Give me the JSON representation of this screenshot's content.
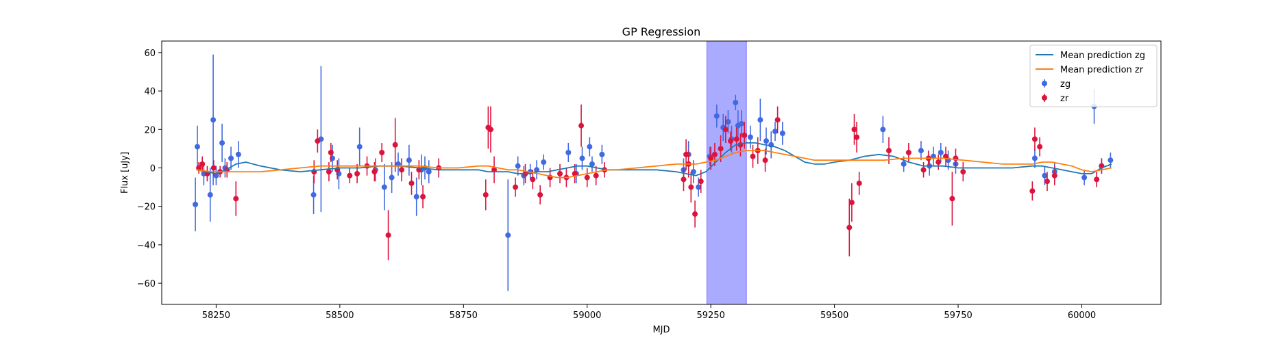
{
  "chart_data": {
    "type": "scatter",
    "title": "GP Regression",
    "xlabel": "MJD",
    "ylabel": "Flux [uJy]",
    "xlim": [
      58140,
      60160
    ],
    "ylim": [
      -71,
      66
    ],
    "xticks": [
      58250,
      58500,
      58750,
      59000,
      59250,
      59500,
      59750,
      60000
    ],
    "yticks": [
      -60,
      -40,
      -20,
      0,
      20,
      40,
      60
    ],
    "grid": false,
    "legend_position": "top-right",
    "highlight_span": {
      "x": [
        59242,
        59322
      ],
      "color": "#aaaaff"
    },
    "series": [
      {
        "name": "Mean prediction zg",
        "kind": "line",
        "color": "#1f77b4",
        "x": [
          58210,
          58230,
          58250,
          58270,
          58290,
          58310,
          58340,
          58380,
          58420,
          58460,
          58500,
          58540,
          58580,
          58620,
          58660,
          58700,
          58740,
          58780,
          58800,
          58820,
          58840,
          58860,
          58880,
          58900,
          58920,
          58940,
          58960,
          58980,
          59000,
          59020,
          59040,
          59060,
          59100,
          59140,
          59180,
          59200,
          59220,
          59240,
          59260,
          59280,
          59300,
          59320,
          59340,
          59360,
          59380,
          59400,
          59420,
          59440,
          59460,
          59480,
          59500,
          59530,
          59560,
          59590,
          59620,
          59650,
          59680,
          59700,
          59720,
          59750,
          59780,
          59820,
          59860,
          59900,
          59920,
          59940,
          59960,
          59980,
          60000,
          60020,
          60040,
          60060
        ],
        "y": [
          -1,
          -2,
          -3,
          -1,
          2,
          3,
          1,
          -1,
          -2,
          -1,
          0,
          0,
          1,
          1,
          0,
          -1,
          -1,
          -1,
          -2,
          -2,
          -2,
          -3,
          -3,
          -2,
          -2,
          -1,
          0,
          1,
          1,
          0,
          -1,
          -1,
          -1,
          -1,
          -2,
          -3,
          -4,
          -2,
          3,
          8,
          12,
          13,
          13,
          12,
          11,
          9,
          6,
          3,
          2,
          2,
          3,
          4,
          6,
          7,
          6,
          3,
          1,
          1,
          1,
          0,
          0,
          0,
          0,
          1,
          1,
          0,
          -1,
          -2,
          -3,
          -3,
          0,
          2
        ]
      },
      {
        "name": "Mean prediction zr",
        "kind": "line",
        "color": "#ff7f0e",
        "x": [
          58210,
          58240,
          58270,
          58300,
          58340,
          58380,
          58420,
          58460,
          58500,
          58540,
          58580,
          58620,
          58660,
          58700,
          58740,
          58780,
          58800,
          58820,
          58840,
          58860,
          58880,
          58900,
          58920,
          58940,
          58960,
          58980,
          59000,
          59020,
          59040,
          59060,
          59100,
          59140,
          59180,
          59200,
          59220,
          59240,
          59260,
          59280,
          59300,
          59320,
          59340,
          59360,
          59380,
          59400,
          59420,
          59440,
          59460,
          59480,
          59500,
          59530,
          59560,
          59600,
          59640,
          59680,
          59720,
          59760,
          59800,
          59840,
          59880,
          59900,
          59920,
          59940,
          59960,
          59980,
          60000,
          60020,
          60040,
          60060
        ],
        "y": [
          -1,
          -2,
          -2,
          -2,
          -2,
          -1,
          0,
          1,
          1,
          1,
          1,
          1,
          1,
          0,
          0,
          1,
          1,
          0,
          -1,
          -1,
          -2,
          -3,
          -4,
          -5,
          -5,
          -4,
          -3,
          -2,
          -1,
          -1,
          0,
          1,
          2,
          2,
          2,
          3,
          4,
          6,
          8,
          9,
          9,
          9,
          8,
          7,
          6,
          5,
          4,
          4,
          4,
          4,
          4,
          4,
          5,
          5,
          5,
          4,
          3,
          2,
          2,
          2,
          3,
          3,
          2,
          1,
          -1,
          -2,
          -1,
          0
        ]
      },
      {
        "name": "zg",
        "kind": "errorbar",
        "color": "#4169e1",
        "x": [
          58208,
          58212,
          58225,
          58238,
          58244,
          58250,
          58262,
          58268,
          58280,
          58295,
          58447,
          58462,
          58485,
          58498,
          58540,
          58572,
          58590,
          58605,
          58618,
          58640,
          58655,
          58665,
          58672,
          58680,
          58840,
          58860,
          58872,
          58885,
          58898,
          58912,
          58962,
          58978,
          58990,
          59005,
          59010,
          59030,
          59195,
          59205,
          59215,
          59225,
          59248,
          59262,
          59275,
          59285,
          59292,
          59300,
          59305,
          59312,
          59330,
          59350,
          59362,
          59372,
          59380,
          59395,
          59598,
          59640,
          59675,
          59692,
          59700,
          59715,
          59730,
          59745,
          59905,
          59925,
          59945,
          60005,
          60025,
          60040,
          60058
        ],
        "y": [
          -19,
          11,
          -3,
          -14,
          25,
          -4,
          13,
          0,
          5,
          7,
          -14,
          15,
          5,
          -3,
          11,
          -1,
          -10,
          -5,
          2,
          4,
          -15,
          -1,
          0,
          -2,
          -35,
          1,
          -4,
          -2,
          -1,
          3,
          8,
          -3,
          5,
          11,
          2,
          7,
          -1,
          7,
          -2,
          -10,
          6,
          27,
          21,
          24,
          15,
          34,
          22,
          23,
          16,
          25,
          14,
          12,
          19,
          18,
          20,
          2,
          9,
          1,
          6,
          8,
          4,
          2,
          5,
          -4,
          -2,
          -5,
          32,
          1,
          4
        ],
        "err": [
          14,
          11,
          6,
          14,
          34,
          5,
          10,
          5,
          6,
          7,
          10,
          38,
          7,
          8,
          10,
          6,
          12,
          8,
          6,
          8,
          10,
          8,
          6,
          6,
          29,
          5,
          5,
          4,
          5,
          4,
          5,
          5,
          6,
          5,
          4,
          5,
          6,
          7,
          6,
          5,
          5,
          6,
          7,
          6,
          7,
          4,
          8,
          7,
          6,
          11,
          7,
          7,
          5,
          6,
          7,
          4,
          5,
          5,
          5,
          5,
          5,
          5,
          5,
          5,
          5,
          4,
          9,
          4,
          4
        ]
      },
      {
        "name": "zr",
        "kind": "errorbar",
        "color": "#dc143c",
        "x": [
          58215,
          58222,
          58232,
          58245,
          58258,
          58272,
          58290,
          58448,
          58455,
          58478,
          58482,
          58495,
          58520,
          58535,
          58555,
          58570,
          58585,
          58598,
          58612,
          58625,
          58645,
          58660,
          58668,
          58700,
          58795,
          58800,
          58805,
          58812,
          58855,
          58875,
          58890,
          58905,
          58925,
          58945,
          58958,
          58975,
          58988,
          59000,
          59018,
          59035,
          59195,
          59200,
          59205,
          59210,
          59218,
          59230,
          59250,
          59258,
          59270,
          59280,
          59290,
          59302,
          59310,
          59318,
          59335,
          59345,
          59360,
          59385,
          59530,
          59535,
          59540,
          59545,
          59550,
          59610,
          59650,
          59680,
          59690,
          59710,
          59725,
          59738,
          59745,
          59760,
          59900,
          59905,
          59915,
          59930,
          59945,
          60030,
          60040
        ],
        "y": [
          0,
          2,
          -3,
          0,
          -2,
          -1,
          -16,
          -2,
          14,
          -2,
          8,
          -1,
          -4,
          -3,
          1,
          -2,
          8,
          -35,
          12,
          -1,
          -8,
          -1,
          -15,
          0,
          -14,
          21,
          20,
          -1,
          -10,
          -3,
          -6,
          -14,
          -5,
          -3,
          -5,
          -3,
          22,
          -5,
          -4,
          -1,
          -6,
          7,
          2,
          -10,
          -24,
          -7,
          5,
          7,
          10,
          20,
          14,
          15,
          12,
          17,
          6,
          9,
          4,
          25,
          -31,
          -18,
          20,
          16,
          -8,
          9,
          8,
          -1,
          5,
          3,
          6,
          -16,
          5,
          -2,
          -12,
          15,
          11,
          -7,
          -4,
          -6,
          1
        ],
        "err": [
          3,
          4,
          4,
          4,
          3,
          4,
          9,
          6,
          6,
          5,
          5,
          5,
          4,
          5,
          5,
          5,
          5,
          13,
          14,
          6,
          6,
          5,
          6,
          5,
          8,
          11,
          12,
          7,
          5,
          5,
          5,
          5,
          5,
          5,
          5,
          5,
          11,
          5,
          5,
          4,
          6,
          8,
          7,
          8,
          7,
          6,
          6,
          6,
          7,
          7,
          5,
          6,
          6,
          7,
          6,
          7,
          6,
          7,
          15,
          10,
          8,
          8,
          6,
          7,
          5,
          4,
          4,
          4,
          5,
          14,
          5,
          5,
          5,
          6,
          5,
          5,
          5,
          4,
          4
        ]
      }
    ]
  }
}
